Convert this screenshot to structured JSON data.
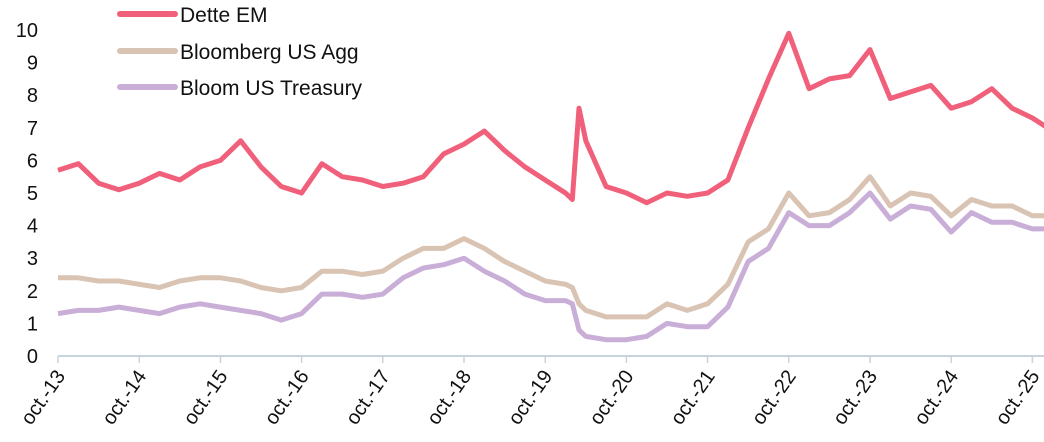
{
  "chart_data": {
    "type": "line",
    "title": "",
    "xlabel": "",
    "ylabel": "",
    "ylim": [
      0,
      10
    ],
    "yticks": [
      "0",
      "1",
      "2",
      "3",
      "4",
      "5",
      "6",
      "7",
      "8",
      "9",
      "10"
    ],
    "xticks": [
      "oct.-13",
      "oct.-14",
      "oct.-15",
      "oct.-16",
      "oct.-17",
      "oct.-18",
      "oct.-19",
      "oct.-20",
      "oct.-21",
      "oct.-22",
      "oct.-23",
      "oct.-24",
      "oct.-25"
    ],
    "grid": false,
    "legend": "top-left",
    "x": [
      "2013-10",
      "2014-01",
      "2014-04",
      "2014-07",
      "2014-10",
      "2015-01",
      "2015-04",
      "2015-07",
      "2015-10",
      "2016-01",
      "2016-04",
      "2016-07",
      "2016-10",
      "2017-01",
      "2017-04",
      "2017-07",
      "2017-10",
      "2018-01",
      "2018-04",
      "2018-07",
      "2018-10",
      "2019-01",
      "2019-04",
      "2019-07",
      "2019-10",
      "2020-01",
      "2020-02",
      "2020-03",
      "2020-04",
      "2020-07",
      "2020-10",
      "2021-01",
      "2021-04",
      "2021-07",
      "2021-10",
      "2022-01",
      "2022-04",
      "2022-07",
      "2022-10",
      "2023-01",
      "2023-04",
      "2023-07",
      "2023-10",
      "2024-01",
      "2024-04",
      "2024-07",
      "2024-10",
      "2025-01",
      "2025-04",
      "2025-07",
      "2025-10",
      "2026-01"
    ],
    "series": [
      {
        "name": "Dette EM",
        "color": "#f0607a",
        "values": [
          5.7,
          5.9,
          5.3,
          5.1,
          5.3,
          5.6,
          5.4,
          5.8,
          6.0,
          6.6,
          5.8,
          5.2,
          5.0,
          5.9,
          5.5,
          5.4,
          5.2,
          5.3,
          5.5,
          6.2,
          6.5,
          6.9,
          6.3,
          5.8,
          5.4,
          5.0,
          4.8,
          7.6,
          6.6,
          5.2,
          5.0,
          4.7,
          5.0,
          4.9,
          5.0,
          5.4,
          7.0,
          8.5,
          9.9,
          8.2,
          8.5,
          8.6,
          9.4,
          7.9,
          8.1,
          8.3,
          7.6,
          7.8,
          8.2,
          7.6,
          7.3,
          6.9
        ]
      },
      {
        "name": "Bloomberg US Agg",
        "color": "#d9c3b3",
        "values": [
          2.4,
          2.4,
          2.3,
          2.3,
          2.2,
          2.1,
          2.3,
          2.4,
          2.4,
          2.3,
          2.1,
          2.0,
          2.1,
          2.6,
          2.6,
          2.5,
          2.6,
          3.0,
          3.3,
          3.3,
          3.6,
          3.3,
          2.9,
          2.6,
          2.3,
          2.2,
          2.1,
          1.6,
          1.4,
          1.2,
          1.2,
          1.2,
          1.6,
          1.4,
          1.6,
          2.2,
          3.5,
          3.9,
          5.0,
          4.3,
          4.4,
          4.8,
          5.5,
          4.6,
          5.0,
          4.9,
          4.3,
          4.8,
          4.6,
          4.6,
          4.3,
          4.3
        ]
      },
      {
        "name": "Bloom US Treasury",
        "color": "#c9aed8",
        "values": [
          1.3,
          1.4,
          1.4,
          1.5,
          1.4,
          1.3,
          1.5,
          1.6,
          1.5,
          1.4,
          1.3,
          1.1,
          1.3,
          1.9,
          1.9,
          1.8,
          1.9,
          2.4,
          2.7,
          2.8,
          3.0,
          2.6,
          2.3,
          1.9,
          1.7,
          1.7,
          1.6,
          0.8,
          0.6,
          0.5,
          0.5,
          0.6,
          1.0,
          0.9,
          0.9,
          1.5,
          2.9,
          3.3,
          4.4,
          4.0,
          4.0,
          4.4,
          5.0,
          4.2,
          4.6,
          4.5,
          3.8,
          4.4,
          4.1,
          4.1,
          3.9,
          3.9
        ]
      }
    ]
  }
}
